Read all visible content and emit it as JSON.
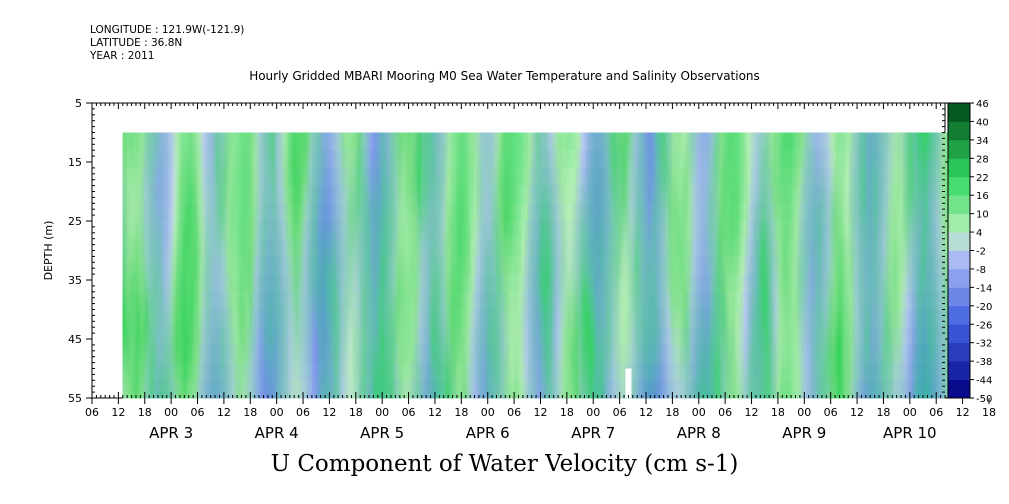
{
  "header": {
    "longitude": "LONGITUDE : 121.9W(-121.9)",
    "latitude": "LATITUDE : 36.8N",
    "year": "YEAR : 2011"
  },
  "chart_data": {
    "type": "heatmap",
    "title": "Hourly Gridded MBARI Mooring M0 Sea Water Temperature and Salinity Observations",
    "colorbar_title": "U Component of Water Velocity (cm s-1)",
    "xlabel": "",
    "ylabel": "DEPTH (m)",
    "y_ticks": [
      5,
      15,
      25,
      35,
      45,
      55
    ],
    "ylim": [
      55,
      5
    ],
    "x_hour_ticks": [
      "06",
      "12",
      "18",
      "00",
      "06",
      "12",
      "18",
      "00",
      "06",
      "12",
      "18",
      "00",
      "06",
      "12",
      "18",
      "00",
      "06",
      "12",
      "18",
      "00",
      "06",
      "12",
      "18",
      "00",
      "06",
      "12",
      "18",
      "00",
      "06",
      "12",
      "18",
      "00",
      "06",
      "12",
      "18",
      "00",
      "06"
    ],
    "x_day_labels": [
      "APR  3",
      "APR  4",
      "APR  5",
      "APR  6",
      "APR  7",
      "APR  8",
      "APR  9",
      "APR 10"
    ],
    "x_range": [
      "2011-04-02T06:00",
      "2011-04-10T08:00"
    ],
    "data_start": "2011-04-02T13:00",
    "data_depth_range": [
      10,
      55
    ],
    "colorbar_levels": [
      -50,
      -44,
      -38,
      -32,
      -26,
      -20,
      -14,
      -8,
      -2,
      4,
      10,
      16,
      22,
      28,
      34,
      40,
      46
    ],
    "colorbar_colors": {
      "negative_strong": "#000080",
      "negative_mid": "#4060e0",
      "negative_weak": "#b8c8f4",
      "positive_weak": "#b8f0b8",
      "positive_mid": "#30d860",
      "positive_strong": "#004818"
    },
    "features": {
      "eastward_dominant": [
        "2011-04-07T12:00/2011-04-08T12:00",
        "2011-04-08T18:00/2011-04-09T12:00"
      ],
      "westward_dominant": [
        "2011-04-06T18:00/2011-04-07T06:00",
        "2011-04-09T18:00/2011-04-10T00:00"
      ],
      "data_gap": "2011-04-07T08:00"
    }
  }
}
